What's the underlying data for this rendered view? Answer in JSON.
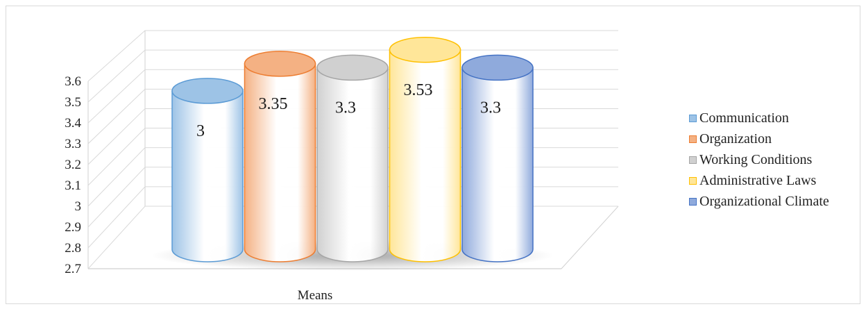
{
  "chart_data": {
    "type": "bar",
    "title": "",
    "xlabel": "",
    "ylabel": "",
    "categories": [
      "Means"
    ],
    "ylim": [
      2.7,
      3.6
    ],
    "y_ticks": [
      "2.7",
      "2.8",
      "2.9",
      "3",
      "3.1",
      "3.2",
      "3.3",
      "3.4",
      "3.5",
      "3.6"
    ],
    "grid": true,
    "legend_position": "right",
    "series": [
      {
        "name": "Communication",
        "values": [
          3
        ],
        "data_label": "3",
        "color": "#9dc3e6",
        "edge": "#5b9bd5"
      },
      {
        "name": "Organization",
        "values": [
          3.35
        ],
        "data_label": "3.35",
        "color": "#f4b183",
        "edge": "#ed7d31"
      },
      {
        "name": "Working Conditions",
        "values": [
          3.3
        ],
        "data_label": "3.3",
        "color": "#d0d0d0",
        "edge": "#a5a5a5"
      },
      {
        "name": "Administrative Laws",
        "values": [
          3.53
        ],
        "data_label": "3.53",
        "color": "#ffe699",
        "edge": "#ffc000"
      },
      {
        "name": "Organizational Climate",
        "values": [
          3.3
        ],
        "data_label": "3.3",
        "color": "#8faadc",
        "edge": "#4472c4"
      }
    ]
  }
}
